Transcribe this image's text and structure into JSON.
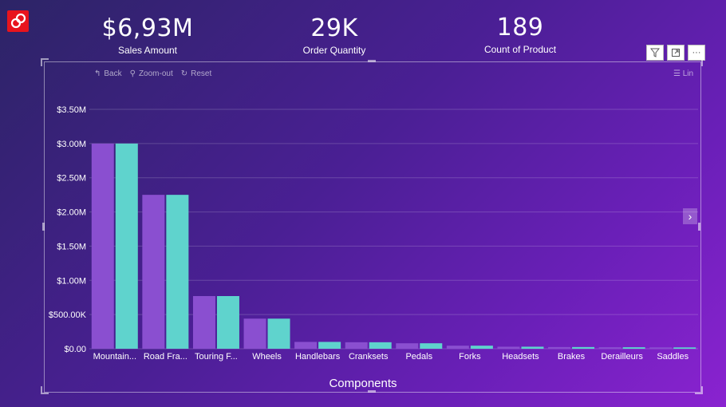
{
  "kpis": [
    {
      "value": "$6,93M",
      "label": "Sales Amount"
    },
    {
      "value": "29K",
      "label": "Order Quantity"
    },
    {
      "value": "189",
      "label": "Count of Product"
    }
  ],
  "toolbar": {
    "back": "Back",
    "zoom_out": "Zoom-out",
    "reset": "Reset",
    "lin": "Lin"
  },
  "icons": {
    "filter": "filter-icon",
    "focus": "focus-mode-icon",
    "more": "more-options-icon",
    "next": "chevron-right-icon"
  },
  "colors": {
    "series1": "#8a4fd0",
    "series2": "#5fd3cd",
    "grid": "rgba(255,255,255,0.18)"
  },
  "chart_data": {
    "type": "bar",
    "categories": [
      "Mountain...",
      "Road Fra...",
      "Touring F...",
      "Wheels",
      "Handlebars",
      "Cranksets",
      "Pedals",
      "Forks",
      "Headsets",
      "Brakes",
      "Derailleurs",
      "Saddles"
    ],
    "series": [
      {
        "values": [
          3000000,
          2250000,
          770000,
          440000,
          100000,
          95000,
          80000,
          45000,
          30000,
          25000,
          22000,
          20000
        ]
      },
      {
        "values": [
          3000000,
          2250000,
          770000,
          440000,
          100000,
          95000,
          80000,
          45000,
          30000,
          25000,
          22000,
          20000
        ]
      }
    ],
    "yticks": [
      "$0.00",
      "$500.00K",
      "$1.00M",
      "$1.50M",
      "$2.00M",
      "$2.50M",
      "$3.00M",
      "$3.50M"
    ],
    "ylim": [
      0,
      3500000
    ],
    "xlabel": "Components",
    "grid": true
  }
}
